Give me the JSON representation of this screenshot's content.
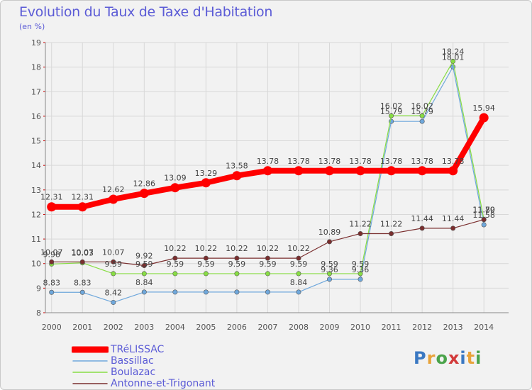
{
  "header": {
    "title": "Evolution du Taux de Taxe d'Habitation",
    "subtitle": "(en %)"
  },
  "logo": {
    "text": "Proxiti",
    "colors": [
      "#3a78c2",
      "#e8a33a",
      "#4aa34a",
      "#d23a3a",
      "#3a78c2",
      "#e8a33a",
      "#4aa34a"
    ]
  },
  "chart_data": {
    "type": "line",
    "x": [
      "2000",
      "2001",
      "2002",
      "2003",
      "2004",
      "2005",
      "2006",
      "2007",
      "2008",
      "2009",
      "2010",
      "2011",
      "2012",
      "2013",
      "2014"
    ],
    "ylim": [
      8,
      19
    ],
    "yticks": [
      8,
      9,
      10,
      11,
      12,
      13,
      14,
      15,
      16,
      17,
      18,
      19
    ],
    "grid": true,
    "legend_position": "bottom-left",
    "series": [
      {
        "name": "TRéLISSAC",
        "color": "#ff0000",
        "bold": true,
        "values": [
          12.31,
          12.31,
          12.62,
          12.86,
          13.09,
          13.29,
          13.58,
          13.78,
          13.78,
          13.78,
          13.78,
          13.78,
          13.78,
          13.78,
          15.94
        ],
        "labels": [
          "12.31",
          "12.31",
          "12.62",
          "12.86",
          "13.09",
          "13.29",
          "13.58",
          "13.78",
          "13.78",
          "13.78",
          "13.78",
          "13.78",
          "13.78",
          "13.78",
          "15.94"
        ]
      },
      {
        "name": "Bassillac",
        "color": "#6fa8dc",
        "values": [
          8.83,
          8.83,
          8.42,
          8.84,
          8.84,
          8.84,
          8.84,
          8.84,
          8.84,
          9.36,
          9.36,
          15.79,
          15.79,
          18.01,
          11.58
        ],
        "labels": [
          "8.83",
          "8.83",
          "8.42",
          "8.84",
          "",
          "",
          "",
          "",
          "8.84",
          "9.36",
          "9.36",
          "15.79",
          "15.79",
          "18.01",
          "11.58"
        ]
      },
      {
        "name": "Boulazac",
        "color": "#88dd44",
        "values": [
          9.98,
          10.03,
          9.59,
          9.59,
          9.59,
          9.59,
          9.59,
          9.59,
          9.59,
          9.59,
          9.59,
          16.02,
          16.02,
          18.24,
          11.8
        ],
        "labels": [
          "9.98",
          "10.03",
          "9.59",
          "9.59",
          "9.59",
          "9.59",
          "9.59",
          "9.59",
          "9.59",
          "9.59",
          "9.59",
          "16.02",
          "16.02",
          "18.24",
          "11.80"
        ]
      },
      {
        "name": "Antonne-et-Trigonant",
        "color": "#7a2e2e",
        "values": [
          10.07,
          10.07,
          10.07,
          9.92,
          10.22,
          10.22,
          10.22,
          10.22,
          10.22,
          10.89,
          11.22,
          11.22,
          11.44,
          11.44,
          11.79
        ],
        "labels": [
          "10.07",
          "10.07",
          "10.07",
          "9.92",
          "10.22",
          "10.22",
          "10.22",
          "10.22",
          "10.22",
          "10.89",
          "11.22",
          "11.22",
          "11.44",
          "11.44",
          "11.79"
        ]
      }
    ]
  }
}
